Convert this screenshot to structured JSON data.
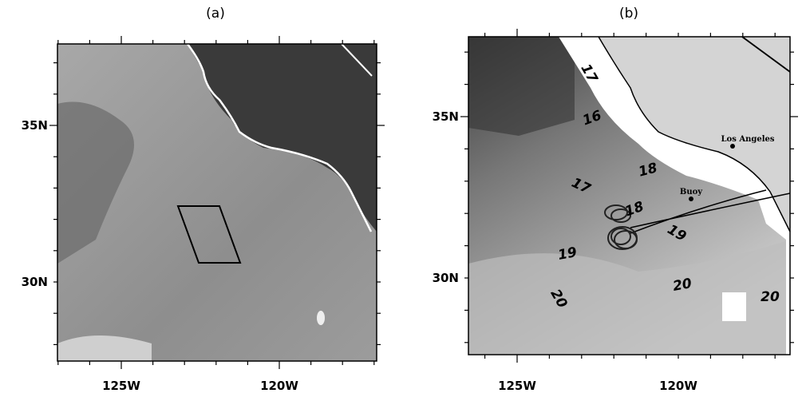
{
  "panels": [
    {
      "label": "(a)",
      "lat_labels": [
        "35N",
        "30N"
      ],
      "lon_labels": [
        "125W",
        "120W"
      ]
    },
    {
      "label": "(b)",
      "lat_labels": [
        "35N",
        "30N"
      ],
      "lon_labels": [
        "125W",
        "120W"
      ],
      "contour_labels": [
        17,
        16,
        18,
        17,
        18,
        19,
        19,
        20,
        20,
        20
      ],
      "places": [
        "Los Angeles",
        "Buoy"
      ]
    }
  ]
}
